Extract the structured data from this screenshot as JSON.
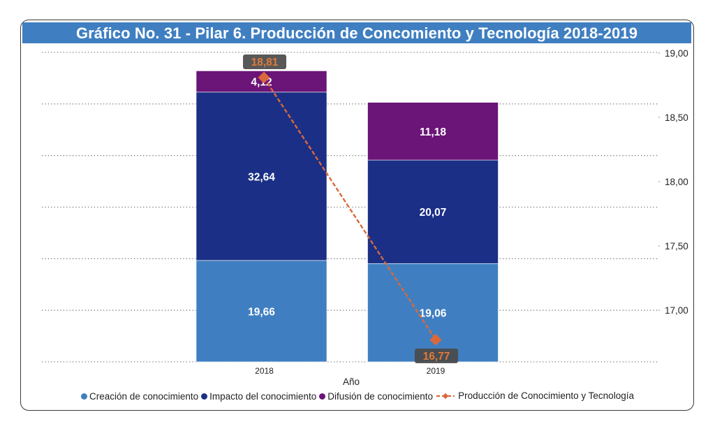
{
  "chart_data": {
    "type": "bar",
    "subtype": "stacked-bar-with-line",
    "title": "Gráfico No. 31 - Pilar 6. Producción de Concomiento y Tecnología 2018-2019",
    "xlabel": "Año",
    "categories": [
      "2018",
      "2019"
    ],
    "series": [
      {
        "name": "Creación de conocimiento",
        "type": "bar",
        "axis": "primary",
        "color": "#3f7fc1",
        "values": [
          19.66,
          19.06
        ],
        "labels": [
          "19,66",
          "19,06"
        ]
      },
      {
        "name": "Impacto del conocimiento",
        "type": "bar",
        "axis": "primary",
        "color": "#1b2f86",
        "values": [
          32.64,
          20.07
        ],
        "labels": [
          "32,64",
          "20,07"
        ]
      },
      {
        "name": "Difusión de conocimiento",
        "type": "bar",
        "axis": "primary",
        "color": "#6a1577",
        "values": [
          4.12,
          11.18
        ],
        "labels": [
          "4,12",
          "11,18"
        ]
      },
      {
        "name": "Producción de Conocimiento y Tecnología",
        "type": "line",
        "axis": "secondary",
        "color": "#d9693a",
        "values": [
          18.81,
          16.77
        ],
        "labels": [
          "18,81",
          "16,77"
        ]
      }
    ],
    "primary_ylim": [
      0,
      60
    ],
    "primary_gridlines": [
      0,
      10,
      20,
      30,
      40,
      50,
      60
    ],
    "secondary_ylim": [
      16.6,
      19.0
    ],
    "secondary_ticks": [
      19.0,
      18.5,
      18.0,
      17.5,
      17.0
    ],
    "secondary_tick_labels": [
      "19,00",
      "18,50",
      "18,00",
      "17,50",
      "17,00"
    ],
    "grid": true,
    "legend_position": "bottom"
  }
}
